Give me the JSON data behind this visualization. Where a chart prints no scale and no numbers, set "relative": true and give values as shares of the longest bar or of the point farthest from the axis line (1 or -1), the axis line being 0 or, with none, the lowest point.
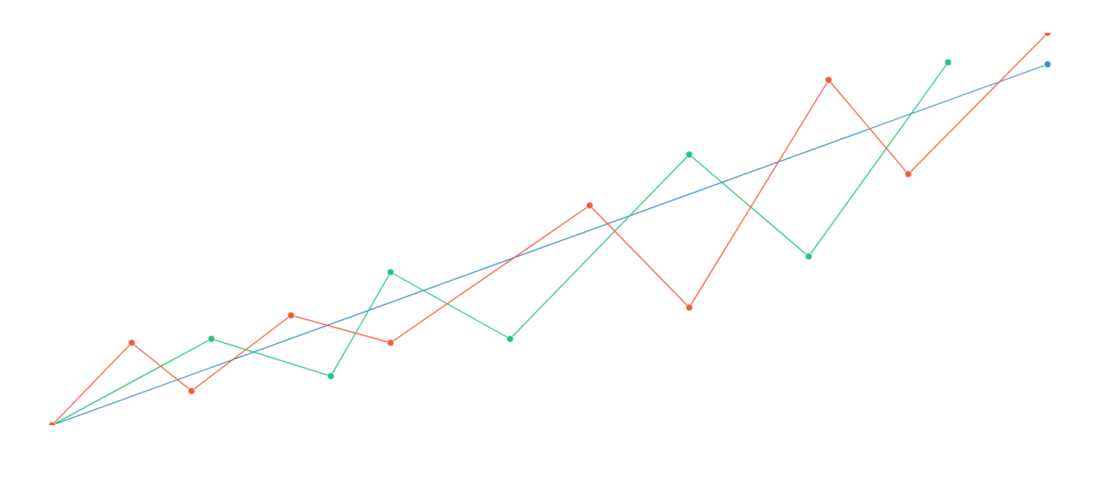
{
  "chart_data": {
    "type": "line",
    "relative": true,
    "marker": "circle",
    "line_style": "solid",
    "categories": [
      null,
      null,
      null,
      null,
      null,
      null,
      null,
      null,
      null,
      null,
      null,
      null,
      null,
      null,
      null,
      null,
      null,
      null,
      null,
      null,
      null,
      null,
      null,
      null,
      null,
      null,
      null,
      null,
      null,
      null,
      null,
      null,
      null,
      null,
      null,
      null,
      null,
      null,
      null,
      null,
      null,
      null,
      null,
      null,
      null,
      null,
      null,
      null,
      null,
      null,
      null
    ],
    "series": [
      {
        "color": "#f15a3a",
        "values": [
          0,
          null,
          null,
          null,
          0.21,
          null,
          null,
          0.087,
          null,
          null,
          null,
          null,
          0.28,
          null,
          null,
          null,
          null,
          0.21,
          null,
          null,
          null,
          null,
          null,
          null,
          null,
          null,
          null,
          0.56,
          null,
          null,
          null,
          null,
          0.3,
          null,
          null,
          null,
          null,
          null,
          null,
          0.88,
          null,
          null,
          null,
          0.64,
          null,
          null,
          null,
          null,
          null,
          null,
          1
        ]
      },
      {
        "color": "#22c47a",
        "values": [
          0,
          null,
          null,
          null,
          null,
          null,
          null,
          null,
          0.22,
          null,
          null,
          null,
          null,
          null,
          0.125,
          null,
          null,
          0.39,
          null,
          null,
          null,
          null,
          null,
          0.22,
          null,
          null,
          null,
          null,
          null,
          null,
          null,
          null,
          0.69,
          null,
          null,
          null,
          null,
          null,
          0.43,
          null,
          null,
          null,
          null,
          null,
          null,
          0.925,
          null,
          null,
          null,
          null,
          null
        ]
      },
      {
        "color": "#3d8fc0",
        "values": [
          0,
          null,
          null,
          null,
          null,
          null,
          null,
          null,
          null,
          null,
          null,
          null,
          null,
          null,
          null,
          null,
          null,
          null,
          null,
          null,
          null,
          null,
          null,
          null,
          null,
          null,
          null,
          null,
          null,
          null,
          null,
          null,
          null,
          null,
          null,
          null,
          null,
          null,
          null,
          null,
          null,
          null,
          null,
          null,
          null,
          null,
          null,
          null,
          null,
          null,
          0.92
        ]
      }
    ]
  }
}
